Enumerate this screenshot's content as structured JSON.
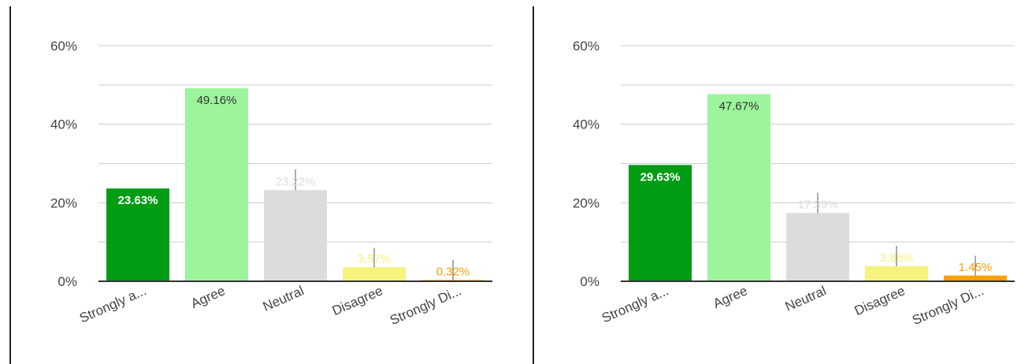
{
  "colors": {
    "strongly_agree": "#009c13",
    "agree": "#9cf49c",
    "neutral": "#dcdcdc",
    "disagree": "#f5f27e",
    "strongly_disagree": "#ff9e00",
    "grid": "#cccccc",
    "axis": "#333333",
    "axis_text": "#444444",
    "divider": "#222222"
  },
  "chart_data": [
    {
      "type": "bar",
      "title": "",
      "xlabel": "",
      "ylabel": "",
      "categories": [
        "Strongly a...",
        "Agree",
        "Neutral",
        "Disagree",
        "Strongly Di..."
      ],
      "values": [
        23.63,
        49.16,
        23.22,
        3.57,
        0.32
      ],
      "data_labels": [
        "23.63%",
        "49.16%",
        "23.22%",
        "3.57%",
        "0.32%"
      ],
      "error_bar_tops": [
        null,
        null,
        28.5,
        8.5,
        5.5
      ],
      "ylim": [
        0,
        60
      ],
      "yticks": [
        "0%",
        "20%",
        "40%",
        "60%"
      ],
      "grid": true,
      "legend": "none"
    },
    {
      "type": "bar",
      "title": "",
      "xlabel": "",
      "ylabel": "",
      "categories": [
        "Strongly a...",
        "Agree",
        "Neutral",
        "Disagree",
        "Strongly Di..."
      ],
      "values": [
        29.63,
        47.67,
        17.39,
        3.86,
        1.45
      ],
      "data_labels": [
        "29.63%",
        "47.67%",
        "17.39%",
        "3.86%",
        "1.45%"
      ],
      "error_bar_tops": [
        null,
        null,
        22.5,
        9.0,
        6.5
      ],
      "ylim": [
        0,
        60
      ],
      "yticks": [
        "0%",
        "20%",
        "40%",
        "60%"
      ],
      "grid": true,
      "legend": "none"
    }
  ]
}
